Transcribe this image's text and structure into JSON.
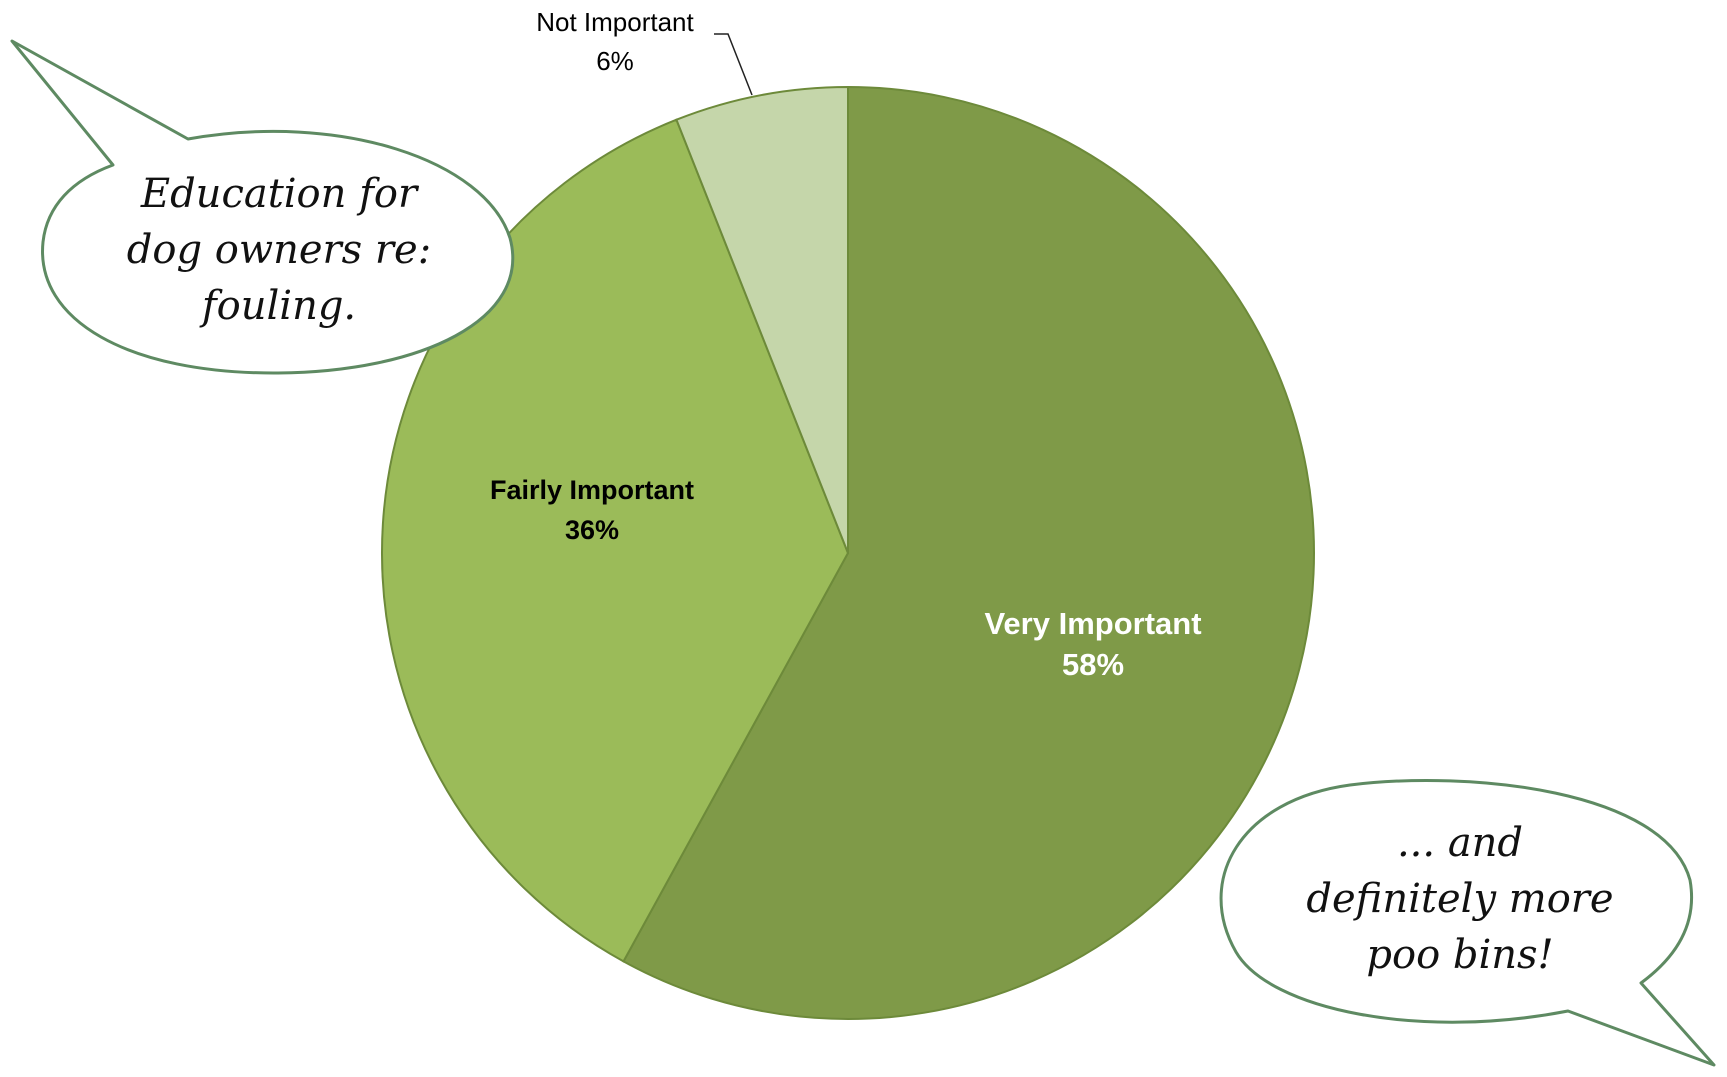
{
  "chart_data": {
    "type": "pie",
    "title": "",
    "slices": [
      {
        "label": "Very Important",
        "value": 58,
        "display": "58%",
        "color": "#7f9a48",
        "label_color": "#ffffff",
        "bold": true
      },
      {
        "label": "Fairly Important",
        "value": 36,
        "display": "36%",
        "color": "#9bbb59",
        "label_color": "#000000",
        "bold": true
      },
      {
        "label": "Not Important",
        "value": 6,
        "display": "6%",
        "color": "#c5d6aa",
        "label_color": "#000000",
        "bold": false
      }
    ],
    "start_angle_deg": 0,
    "direction": "clockwise",
    "legend": "none",
    "slice_border_color": "#6d8a3a"
  },
  "callouts": {
    "left_lines": [
      "Education for",
      "dog owners re:",
      "fouling."
    ],
    "right_lines": [
      "... and",
      "definitely more",
      "poo bins!"
    ],
    "border_color": "#5e8a62"
  }
}
